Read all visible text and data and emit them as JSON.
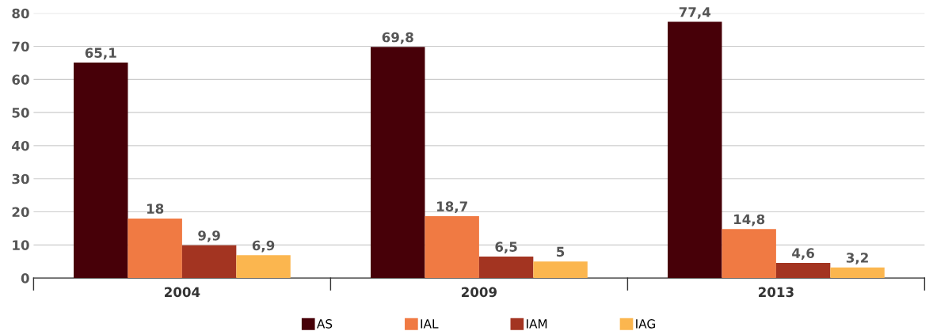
{
  "chart_data": {
    "type": "bar",
    "categories": [
      "2004",
      "2009",
      "2013"
    ],
    "series": [
      {
        "name": "AS",
        "color": "#470008",
        "values": [
          65.1,
          69.8,
          77.4
        ],
        "value_labels": [
          "65,1",
          "69,8",
          "77,4"
        ]
      },
      {
        "name": "IAL",
        "color": "#f07a43",
        "values": [
          18,
          18.7,
          14.8
        ],
        "value_labels": [
          "18",
          "18,7",
          "14,8"
        ]
      },
      {
        "name": "IAM",
        "color": "#a33421",
        "values": [
          9.9,
          6.5,
          4.6
        ],
        "value_labels": [
          "9,9",
          "6,5",
          "4,6"
        ]
      },
      {
        "name": "IAG",
        "color": "#fbb64f",
        "values": [
          6.9,
          5,
          3.2
        ],
        "value_labels": [
          "6,9",
          "5",
          "3,2"
        ]
      }
    ],
    "ylim": [
      0,
      80
    ],
    "yticks": [
      0,
      10,
      20,
      30,
      40,
      50,
      60,
      70,
      80
    ],
    "grid": "y",
    "legend": "bottom"
  }
}
